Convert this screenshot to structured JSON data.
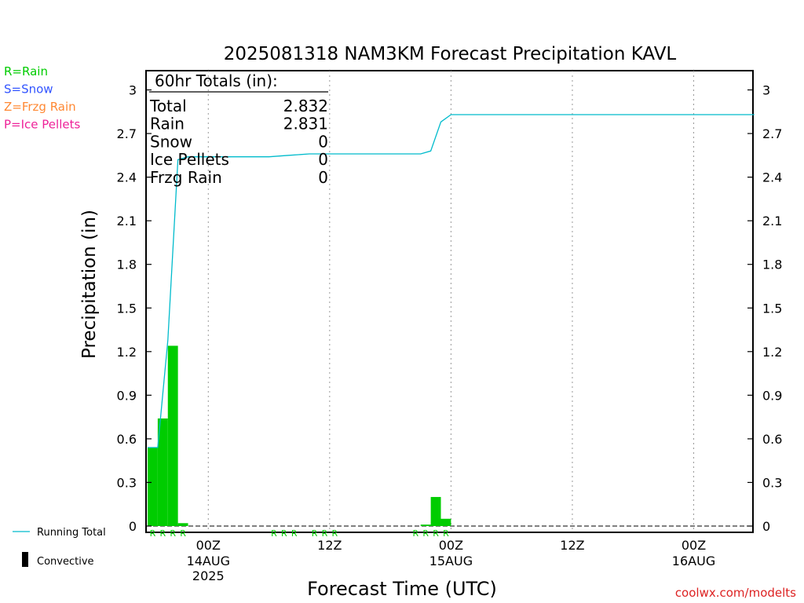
{
  "chart_data": {
    "type": "bar",
    "title": "2025081318 NAM3KM Forecast Precipitation KAVL",
    "xlabel": "Forecast Time (UTC)",
    "ylabel": "Precipitation (in)",
    "ylim": [
      0,
      3.1
    ],
    "yticks": [
      0,
      0.3,
      0.6,
      0.9,
      1.2,
      1.5,
      1.8,
      2.1,
      2.4,
      2.7,
      3
    ],
    "ytick_labels": [
      "0",
      "0.3",
      "0.6",
      "0.9",
      "1.2",
      "1.5",
      "1.8",
      "2.1",
      "2.4",
      "2.7",
      "3"
    ],
    "x_unit": "forecast hour",
    "xlim": [
      0,
      60
    ],
    "xticks": [
      {
        "hour": 6,
        "label": "00Z",
        "sub": "14AUG",
        "sub2": "2025"
      },
      {
        "hour": 18,
        "label": "12Z",
        "sub": "",
        "sub2": ""
      },
      {
        "hour": 30,
        "label": "00Z",
        "sub": "15AUG",
        "sub2": ""
      },
      {
        "hour": 42,
        "label": "12Z",
        "sub": "",
        "sub2": ""
      },
      {
        "hour": 54,
        "label": "00Z",
        "sub": "16AUG",
        "sub2": ""
      }
    ],
    "grid": "vertical-dotted",
    "series": [
      {
        "name": "Rain",
        "type": "bar",
        "color": "#00cc00",
        "points": [
          {
            "hour": 1,
            "value": 0.54
          },
          {
            "hour": 2,
            "value": 0.74
          },
          {
            "hour": 3,
            "value": 1.24
          },
          {
            "hour": 4,
            "value": 0.02
          },
          {
            "hour": 28,
            "value": 0.01
          },
          {
            "hour": 29,
            "value": 0.2
          },
          {
            "hour": 30,
            "value": 0.05
          }
        ]
      },
      {
        "name": "Running Total",
        "type": "line",
        "color": "#00bbcc",
        "points": [
          {
            "hour": 0,
            "value": 0.54
          },
          {
            "hour": 1,
            "value": 0.54
          },
          {
            "hour": 2,
            "value": 1.28
          },
          {
            "hour": 3,
            "value": 2.52
          },
          {
            "hour": 4,
            "value": 2.54
          },
          {
            "hour": 12,
            "value": 2.54
          },
          {
            "hour": 14,
            "value": 2.55
          },
          {
            "hour": 16,
            "value": 2.56
          },
          {
            "hour": 27,
            "value": 2.56
          },
          {
            "hour": 28,
            "value": 2.58
          },
          {
            "hour": 29,
            "value": 2.78
          },
          {
            "hour": 30,
            "value": 2.83
          },
          {
            "hour": 60,
            "value": 2.83
          }
        ]
      }
    ],
    "ptype_markers": {
      "letter": "R",
      "color": "#00cc00",
      "hours": [
        1,
        2,
        3,
        4,
        13,
        14,
        15,
        17,
        18,
        19,
        27,
        28,
        29,
        30
      ]
    },
    "totals_box": {
      "header": "60hr Totals (in):",
      "rows": [
        {
          "label": "Total",
          "value": "2.832"
        },
        {
          "label": "Rain",
          "value": "2.831"
        },
        {
          "label": "Snow",
          "value": "0"
        },
        {
          "label": "Ice Pellets",
          "value": "0"
        },
        {
          "label": "Frzg Rain",
          "value": "0"
        }
      ]
    },
    "legend_top_left": [
      {
        "text": "R=Rain",
        "color": "#00cc00"
      },
      {
        "text": "S=Snow",
        "color": "#3355ff"
      },
      {
        "text": "Z=Frzg Rain",
        "color": "#ff8833"
      },
      {
        "text": "P=Ice Pellets",
        "color": "#ee2299"
      }
    ],
    "legend_bottom_left": [
      {
        "text": "Running Total",
        "kind": "line",
        "color": "#00bbcc"
      },
      {
        "text": "Convective",
        "kind": "bar",
        "color": "#000000"
      }
    ]
  },
  "footer": {
    "credit": "coolwx.com/modelts",
    "credit_color": "#dd2222"
  }
}
